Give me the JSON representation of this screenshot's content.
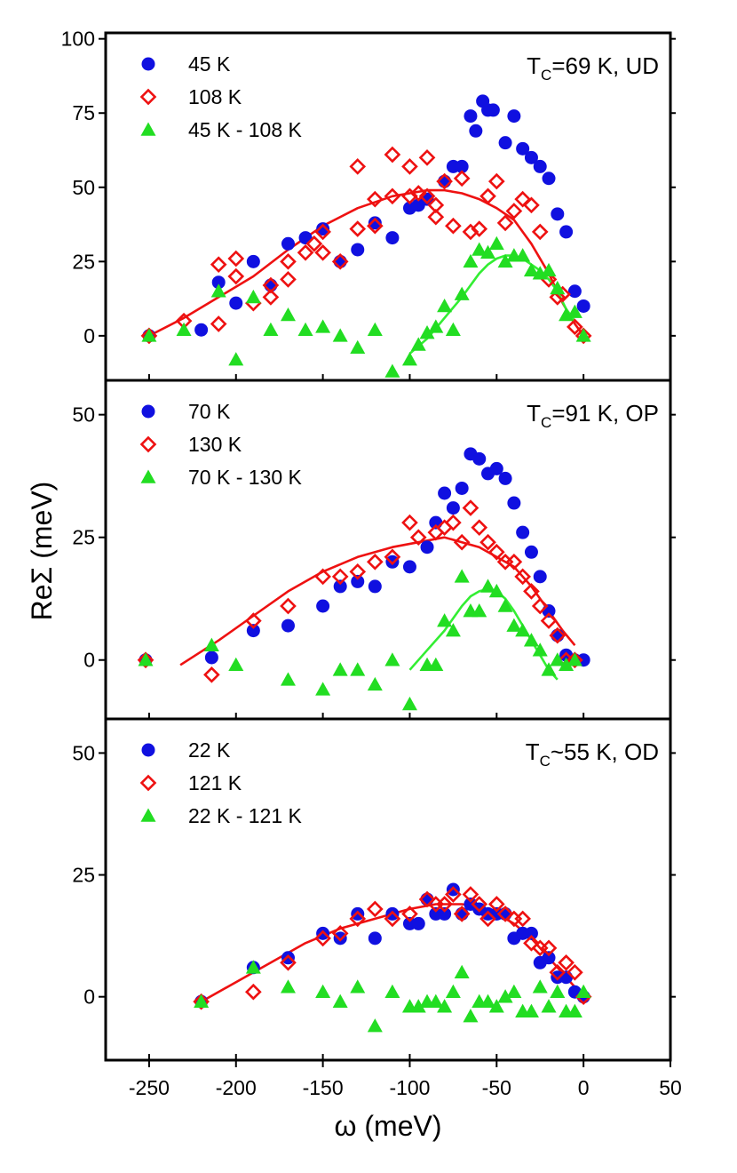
{
  "chart_data": {
    "type": "scatter",
    "xlabel": "ω (meV)",
    "ylabel": "ReΣ (meV)",
    "xlim": [
      -275,
      50
    ],
    "xticks": [
      -250,
      -200,
      -150,
      -100,
      -50,
      0,
      50
    ],
    "colors": {
      "low_t": "#1010e0",
      "high_t": "#ee1111",
      "diff": "#22dd22",
      "fit_high": "#ee1111",
      "fit_diff": "#33ee33"
    },
    "panels": [
      {
        "id": "ud",
        "label_main": "T",
        "label_sub": "C",
        "label_rest": "=69 K, UD",
        "ylim": [
          -15,
          102
        ],
        "yticks": [
          0,
          25,
          50,
          75,
          100
        ],
        "legend": [
          "45 K",
          "108 K",
          "45 K - 108 K"
        ],
        "series": [
          {
            "name": "45 K",
            "marker": "circle",
            "x": [
              -250,
              -220,
              -210,
              -200,
              -190,
              -180,
              -170,
              -160,
              -150,
              -140,
              -130,
              -120,
              -110,
              -100,
              -95,
              -90,
              -80,
              -75,
              -70,
              -65,
              -62,
              -58,
              -55,
              -52,
              -45,
              -40,
              -35,
              -30,
              -25,
              -20,
              -15,
              -10,
              -5,
              0
            ],
            "y": [
              0,
              2,
              18,
              11,
              25,
              17,
              31,
              33,
              36,
              25,
              29,
              38,
              33,
              43,
              44,
              46,
              52,
              57,
              57,
              74,
              69,
              79,
              76,
              76,
              65,
              74,
              63,
              60,
              57,
              53,
              41,
              35,
              15,
              10
            ]
          },
          {
            "name": "108 K",
            "marker": "diamond",
            "x": [
              -250,
              -230,
              -210,
              -210,
              -200,
              -200,
              -190,
              -180,
              -180,
              -170,
              -170,
              -160,
              -155,
              -150,
              -150,
              -140,
              -130,
              -130,
              -120,
              -120,
              -110,
              -110,
              -100,
              -100,
              -95,
              -90,
              -90,
              -85,
              -85,
              -80,
              -75,
              -70,
              -65,
              -60,
              -55,
              -50,
              -45,
              -40,
              -35,
              -30,
              -25,
              -20,
              -15,
              -12,
              -5,
              0
            ],
            "y": [
              0,
              5,
              4,
              24,
              20,
              26,
              11,
              13,
              17,
              19,
              25,
              28,
              31,
              28,
              35,
              25,
              36,
              57,
              37,
              46,
              47,
              61,
              47,
              57,
              48,
              47,
              60,
              40,
              44,
              52,
              37,
              53,
              35,
              36,
              47,
              52,
              38,
              42,
              46,
              44,
              35,
              19,
              13,
              14,
              3,
              0
            ]
          },
          {
            "name": "45 K - 108 K",
            "marker": "triangle",
            "x": [
              -250,
              -230,
              -210,
              -200,
              -190,
              -180,
              -170,
              -160,
              -150,
              -140,
              -130,
              -120,
              -110,
              -100,
              -95,
              -90,
              -85,
              -80,
              -75,
              -70,
              -65,
              -60,
              -55,
              -50,
              -45,
              -40,
              -35,
              -30,
              -25,
              -20,
              -15,
              -10,
              -5,
              0
            ],
            "y": [
              0,
              2,
              15,
              -8,
              13,
              2,
              7,
              2,
              3,
              0,
              -4,
              2,
              -12,
              -8,
              -3,
              1,
              3,
              10,
              2,
              14,
              25,
              29,
              28,
              31,
              25,
              27,
              27,
              22,
              21,
              22,
              16,
              7,
              8,
              0
            ]
          }
        ],
        "fits": [
          {
            "name": "108 K fit",
            "color_key": "fit_high",
            "x": [
              -250,
              -230,
              -210,
              -190,
              -170,
              -150,
              -130,
              -110,
              -90,
              -80,
              -70,
              -60,
              -50,
              -40,
              -30,
              -20,
              -12,
              -5,
              0
            ],
            "y": [
              0,
              6,
              13,
              20,
              29,
              37,
              43,
              47,
              49,
              49,
              48,
              46,
              43,
              39,
              31,
              21,
              11,
              4,
              0
            ]
          },
          {
            "name": "diff fit",
            "color_key": "fit_diff",
            "x": [
              -100,
              -90,
              -80,
              -70,
              -60,
              -55,
              -50,
              -45,
              -40,
              -35,
              -30,
              -25,
              -20,
              -15,
              -10,
              -5
            ],
            "y": [
              -6,
              -1,
              6,
              13,
              21,
              24,
              26,
              27,
              27,
              26,
              24,
              22,
              19,
              15,
              9,
              5
            ]
          }
        ]
      },
      {
        "id": "op",
        "label_main": "T",
        "label_sub": "C",
        "label_rest": "=91 K, OP",
        "ylim": [
          -12,
          57
        ],
        "yticks": [
          0,
          25,
          50
        ],
        "legend": [
          "70 K",
          "130 K",
          "70 K - 130 K"
        ],
        "series": [
          {
            "name": "70 K",
            "marker": "circle",
            "x": [
              -252,
              -214,
              -190,
              -170,
              -150,
              -140,
              -130,
              -120,
              -110,
              -100,
              -90,
              -85,
              -80,
              -75,
              -70,
              -65,
              -60,
              -55,
              -50,
              -45,
              -40,
              -35,
              -30,
              -25,
              -20,
              -15,
              -10,
              -5,
              0
            ],
            "y": [
              0,
              0.5,
              6,
              7,
              11,
              15,
              16,
              15,
              20,
              19,
              23,
              28,
              34,
              31,
              35,
              42,
              41,
              38,
              39,
              37,
              32,
              26,
              22,
              17,
              10,
              5,
              1,
              0,
              0
            ]
          },
          {
            "name": "130 K",
            "marker": "diamond",
            "x": [
              -252,
              -214,
              -190,
              -170,
              -150,
              -140,
              -130,
              -120,
              -110,
              -100,
              -95,
              -85,
              -80,
              -75,
              -70,
              -65,
              -60,
              -55,
              -50,
              -45,
              -40,
              -35,
              -30,
              -25,
              -20,
              -15,
              -10,
              -5
            ],
            "y": [
              0,
              -3,
              8,
              11,
              17,
              17,
              18,
              20,
              21,
              28,
              25,
              26,
              27,
              28,
              24,
              31,
              27,
              24,
              22,
              20,
              20,
              17,
              14,
              11,
              8,
              5,
              0,
              0
            ]
          },
          {
            "name": "70 K - 130 K",
            "marker": "triangle",
            "x": [
              -252,
              -214,
              -200,
              -170,
              -150,
              -140,
              -130,
              -120,
              -110,
              -100,
              -90,
              -85,
              -80,
              -75,
              -70,
              -65,
              -60,
              -55,
              -50,
              -45,
              -40,
              -35,
              -30,
              -25,
              -20,
              -15,
              -10,
              -5
            ],
            "y": [
              0,
              3,
              -1,
              -4,
              -6,
              -2,
              -2,
              -5,
              0,
              -9,
              -1,
              -1,
              8,
              6,
              17,
              10,
              10,
              15,
              14,
              11,
              7,
              6,
              4,
              2,
              -2,
              0,
              -1,
              0
            ]
          }
        ],
        "fits": [
          {
            "name": "130 K fit",
            "color_key": "fit_high",
            "x": [
              -232,
              -210,
              -190,
              -170,
              -150,
              -130,
              -110,
              -95,
              -80,
              -70,
              -60,
              -50,
              -40,
              -30,
              -20,
              -12,
              -5
            ],
            "y": [
              -1,
              4,
              9,
              14,
              18,
              21,
              23,
              24,
              25,
              24,
              23,
              21,
              19,
              15,
              10,
              6,
              3
            ]
          },
          {
            "name": "diff fit",
            "color_key": "fit_diff",
            "x": [
              -100,
              -90,
              -80,
              -70,
              -65,
              -60,
              -55,
              -50,
              -45,
              -40,
              -35,
              -30,
              -25,
              -20,
              -15
            ],
            "y": [
              -2,
              2,
              6,
              11,
              13,
              14,
              14.5,
              14,
              12.5,
              10,
              7,
              4,
              1,
              -2,
              -4
            ]
          }
        ]
      },
      {
        "id": "od",
        "label_main": "T",
        "label_sub": "C",
        "label_rest": "~55 K, OD",
        "ylim": [
          -13,
          57
        ],
        "yticks": [
          0,
          25,
          50
        ],
        "legend": [
          "22 K",
          "121 K",
          "22 K - 121 K"
        ],
        "series": [
          {
            "name": "22 K",
            "marker": "circle",
            "x": [
              -220,
              -190,
              -170,
              -150,
              -140,
              -130,
              -120,
              -110,
              -100,
              -95,
              -90,
              -85,
              -80,
              -75,
              -70,
              -65,
              -60,
              -55,
              -50,
              -45,
              -40,
              -35,
              -30,
              -25,
              -20,
              -15,
              -10,
              -5,
              0
            ],
            "y": [
              -1,
              6,
              8,
              13,
              12,
              17,
              12,
              17,
              15,
              15,
              20,
              17,
              17,
              22,
              17,
              19,
              18,
              17,
              17,
              17,
              12,
              13,
              13,
              7,
              8,
              4,
              4,
              1,
              0
            ]
          },
          {
            "name": "121 K",
            "marker": "diamond",
            "x": [
              -220,
              -190,
              -170,
              -150,
              -140,
              -130,
              -120,
              -110,
              -100,
              -90,
              -85,
              -80,
              -75,
              -70,
              -65,
              -60,
              -55,
              -50,
              -45,
              -40,
              -35,
              -30,
              -25,
              -20,
              -15,
              -10,
              -5,
              0
            ],
            "y": [
              -1,
              1,
              7,
              12,
              13,
              16,
              18,
              16,
              17,
              20,
              19,
              19,
              21,
              17,
              21,
              19,
              16,
              19,
              17,
              16,
              16,
              11,
              10,
              10,
              5,
              7,
              5,
              0
            ]
          },
          {
            "name": "22 K - 121 K",
            "marker": "triangle",
            "x": [
              -220,
              -190,
              -170,
              -150,
              -140,
              -130,
              -120,
              -110,
              -100,
              -95,
              -90,
              -85,
              -80,
              -75,
              -70,
              -65,
              -60,
              -55,
              -50,
              -45,
              -40,
              -35,
              -30,
              -25,
              -20,
              -15,
              -10,
              -5,
              0
            ],
            "y": [
              -1,
              6,
              2,
              1,
              -1,
              2,
              -6,
              1,
              -2,
              -2,
              -1,
              -1,
              -2,
              1,
              5,
              -4,
              -1,
              -1,
              -2,
              0,
              1,
              -3,
              -3,
              2,
              -2,
              1,
              -3,
              -3,
              1
            ]
          }
        ],
        "fits": [
          {
            "name": "121 K fit",
            "color_key": "fit_high",
            "x": [
              -220,
              -200,
              -180,
              -160,
              -140,
              -120,
              -100,
              -85,
              -70,
              -60,
              -50,
              -40,
              -30,
              -20,
              -10,
              -5,
              0
            ],
            "y": [
              -1,
              3,
              7,
              11,
              14,
              16,
              18,
              19,
              19,
              18.5,
              17,
              15,
              12,
              8,
              4,
              2,
              0
            ]
          }
        ]
      }
    ]
  }
}
